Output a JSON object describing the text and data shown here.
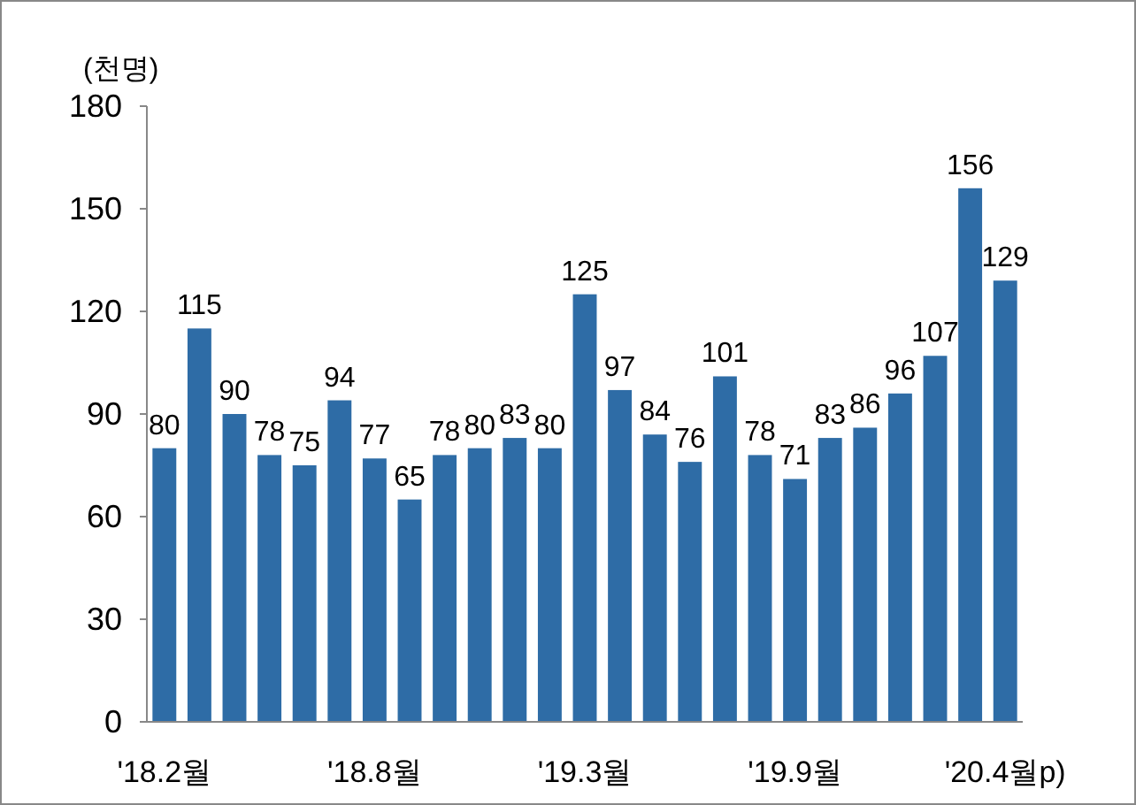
{
  "chart_data": {
    "type": "bar",
    "ylabel": "(천명)",
    "categories": [
      "'18.2월",
      null,
      null,
      null,
      null,
      null,
      "'18.8월",
      null,
      null,
      null,
      null,
      null,
      "'19.3월",
      null,
      null,
      null,
      null,
      null,
      "'19.9월",
      null,
      null,
      null,
      null,
      null,
      "'20.4월p)"
    ],
    "values": [
      80,
      115,
      90,
      78,
      75,
      94,
      77,
      65,
      78,
      80,
      83,
      80,
      125,
      97,
      84,
      76,
      101,
      78,
      71,
      83,
      86,
      96,
      107,
      156,
      129
    ],
    "color": "#2e6ca6",
    "ylim": [
      0,
      180
    ],
    "yticks": [
      0,
      30,
      60,
      90,
      120,
      150,
      180
    ],
    "data_labels": true,
    "grid": false
  }
}
